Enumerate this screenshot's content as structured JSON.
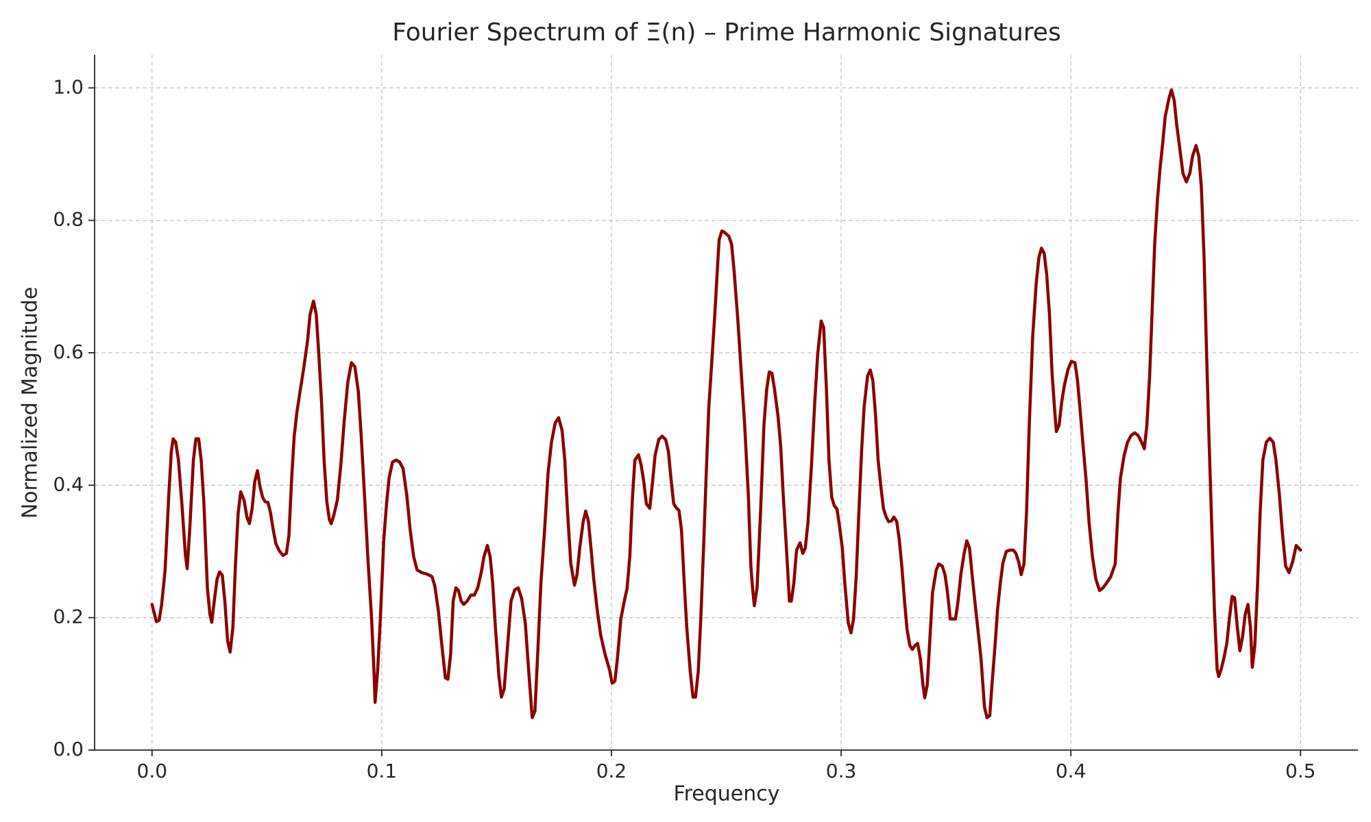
{
  "chart_data": {
    "type": "line",
    "title": "Fourier Spectrum of Ξ(n) – Prime Harmonic Signatures",
    "xlabel": "Frequency",
    "ylabel": "Normalized Magnitude",
    "color": "#8b0000",
    "grid": true,
    "xlim": [
      -0.025,
      0.525
    ],
    "ylim": [
      0,
      1.05
    ],
    "xticks": [
      {
        "value": 0,
        "label": "0.0"
      },
      0.1,
      0.2,
      0.3,
      0.4,
      0.5
    ],
    "yticks": [
      {
        "value": 0,
        "label": "0.0"
      },
      0.2,
      0.4,
      0.6,
      0.8,
      {
        "value": 1,
        "label": "1.0"
      }
    ],
    "x": [
      0.0,
      0.0019,
      0.0031,
      0.0042,
      0.0057,
      0.0073,
      0.0084,
      0.0092,
      0.0103,
      0.0115,
      0.013,
      0.0145,
      0.0153,
      0.0164,
      0.018,
      0.0191,
      0.0203,
      0.0214,
      0.0226,
      0.0241,
      0.0252,
      0.026,
      0.0271,
      0.0283,
      0.0294,
      0.0306,
      0.0317,
      0.0329,
      0.034,
      0.0352,
      0.0363,
      0.0375,
      0.0386,
      0.0401,
      0.0413,
      0.0424,
      0.0436,
      0.0447,
      0.0459,
      0.047,
      0.0482,
      0.0493,
      0.0505,
      0.0516,
      0.0528,
      0.0539,
      0.0554,
      0.057,
      0.0585,
      0.0596,
      0.0608,
      0.0619,
      0.0631,
      0.0646,
      0.0661,
      0.0677,
      0.0688,
      0.0703,
      0.0715,
      0.0726,
      0.0738,
      0.0749,
      0.0761,
      0.0772,
      0.078,
      0.0791,
      0.0807,
      0.0822,
      0.0837,
      0.0852,
      0.0868,
      0.0883,
      0.0898,
      0.091,
      0.0925,
      0.094,
      0.0956,
      0.0967,
      0.0971,
      0.0982,
      0.0994,
      0.1009,
      0.1021,
      0.1032,
      0.1047,
      0.1063,
      0.1078,
      0.1093,
      0.1109,
      0.1124,
      0.1139,
      0.1154,
      0.1174,
      0.1196,
      0.1219,
      0.1231,
      0.1246,
      0.1261,
      0.1277,
      0.1288,
      0.13,
      0.1311,
      0.1323,
      0.1334,
      0.1346,
      0.1357,
      0.1372,
      0.1388,
      0.1403,
      0.1418,
      0.1433,
      0.1445,
      0.146,
      0.1472,
      0.1483,
      0.1495,
      0.151,
      0.1521,
      0.1533,
      0.1548,
      0.1563,
      0.1579,
      0.1594,
      0.1609,
      0.1625,
      0.164,
      0.1655,
      0.1667,
      0.1678,
      0.1693,
      0.1709,
      0.1724,
      0.1739,
      0.1755,
      0.177,
      0.1785,
      0.1797,
      0.1808,
      0.1823,
      0.1839,
      0.185,
      0.1862,
      0.1877,
      0.1888,
      0.19,
      0.1911,
      0.1923,
      0.1938,
      0.1953,
      0.1972,
      0.1992,
      0.2003,
      0.2015,
      0.2026,
      0.2041,
      0.2056,
      0.2068,
      0.208,
      0.2091,
      0.2102,
      0.2118,
      0.2129,
      0.2141,
      0.2152,
      0.2167,
      0.2179,
      0.219,
      0.2206,
      0.2221,
      0.2236,
      0.2248,
      0.2259,
      0.2271,
      0.2282,
      0.2294,
      0.2305,
      0.2317,
      0.2328,
      0.2343,
      0.2355,
      0.2366,
      0.2378,
      0.2389,
      0.2401,
      0.2412,
      0.2424,
      0.2439,
      0.245,
      0.2462,
      0.2469,
      0.2481,
      0.2492,
      0.2511,
      0.2523,
      0.2534,
      0.255,
      0.2565,
      0.258,
      0.2596,
      0.2607,
      0.2615,
      0.2622,
      0.2634,
      0.2649,
      0.2664,
      0.2676,
      0.2687,
      0.2699,
      0.271,
      0.2725,
      0.2737,
      0.2748,
      0.2764,
      0.2775,
      0.2783,
      0.2794,
      0.2806,
      0.2821,
      0.2833,
      0.2844,
      0.2856,
      0.2871,
      0.2886,
      0.2898,
      0.2913,
      0.2924,
      0.2936,
      0.2947,
      0.2959,
      0.297,
      0.2982,
      0.2993,
      0.3005,
      0.3016,
      0.3031,
      0.3043,
      0.3054,
      0.3066,
      0.3077,
      0.3089,
      0.31,
      0.3115,
      0.3127,
      0.3138,
      0.315,
      0.3161,
      0.3173,
      0.3184,
      0.3196,
      0.3207,
      0.3219,
      0.323,
      0.3242,
      0.3253,
      0.3264,
      0.3276,
      0.3287,
      0.3299,
      0.331,
      0.3322,
      0.3333,
      0.3345,
      0.3356,
      0.3364,
      0.3375,
      0.3387,
      0.3398,
      0.3414,
      0.3425,
      0.344,
      0.3452,
      0.3463,
      0.3475,
      0.3486,
      0.3498,
      0.3509,
      0.3521,
      0.3536,
      0.3547,
      0.3559,
      0.357,
      0.3582,
      0.3593,
      0.3609,
      0.3624,
      0.3635,
      0.3647,
      0.3658,
      0.367,
      0.3681,
      0.3693,
      0.3704,
      0.3719,
      0.3735,
      0.375,
      0.3761,
      0.3773,
      0.3784,
      0.3796,
      0.3807,
      0.3819,
      0.3834,
      0.3849,
      0.3861,
      0.3872,
      0.3884,
      0.3895,
      0.3907,
      0.3918,
      0.393,
      0.3937,
      0.3949,
      0.396,
      0.3972,
      0.3987,
      0.4002,
      0.4018,
      0.4029,
      0.4041,
      0.4052,
      0.4067,
      0.4079,
      0.4094,
      0.4109,
      0.4125,
      0.414,
      0.4155,
      0.4174,
      0.4193,
      0.4205,
      0.4216,
      0.4232,
      0.4247,
      0.4262,
      0.4278,
      0.4293,
      0.4308,
      0.432,
      0.4331,
      0.4343,
      0.4354,
      0.4365,
      0.4377,
      0.4388,
      0.44,
      0.4411,
      0.4427,
      0.4438,
      0.445,
      0.4461,
      0.4476,
      0.4488,
      0.4503,
      0.4518,
      0.453,
      0.4545,
      0.4557,
      0.4568,
      0.458,
      0.4591,
      0.4602,
      0.4614,
      0.4625,
      0.4637,
      0.4644,
      0.4656,
      0.4667,
      0.4679,
      0.469,
      0.4702,
      0.4713,
      0.4725,
      0.4736,
      0.4748,
      0.4759,
      0.4771,
      0.4782,
      0.479,
      0.4801,
      0.4813,
      0.4824,
      0.4836,
      0.4851,
      0.4866,
      0.4881,
      0.4893,
      0.4908,
      0.492,
      0.4935,
      0.495,
      0.4966,
      0.4981,
      0.5
    ],
    "values": [
      0.22,
      0.194,
      0.196,
      0.22,
      0.272,
      0.385,
      0.451,
      0.47,
      0.465,
      0.438,
      0.372,
      0.296,
      0.274,
      0.332,
      0.438,
      0.47,
      0.47,
      0.438,
      0.372,
      0.245,
      0.205,
      0.193,
      0.225,
      0.258,
      0.269,
      0.264,
      0.225,
      0.165,
      0.148,
      0.185,
      0.278,
      0.358,
      0.39,
      0.377,
      0.352,
      0.342,
      0.365,
      0.405,
      0.422,
      0.398,
      0.381,
      0.375,
      0.374,
      0.358,
      0.332,
      0.312,
      0.301,
      0.294,
      0.297,
      0.324,
      0.411,
      0.474,
      0.511,
      0.545,
      0.578,
      0.618,
      0.658,
      0.678,
      0.658,
      0.598,
      0.525,
      0.438,
      0.375,
      0.348,
      0.342,
      0.354,
      0.378,
      0.431,
      0.498,
      0.555,
      0.585,
      0.579,
      0.542,
      0.478,
      0.385,
      0.288,
      0.198,
      0.112,
      0.072,
      0.119,
      0.198,
      0.318,
      0.372,
      0.411,
      0.435,
      0.438,
      0.435,
      0.425,
      0.385,
      0.332,
      0.292,
      0.272,
      0.268,
      0.266,
      0.262,
      0.248,
      0.212,
      0.161,
      0.109,
      0.107,
      0.145,
      0.225,
      0.245,
      0.241,
      0.225,
      0.22,
      0.225,
      0.234,
      0.234,
      0.245,
      0.268,
      0.292,
      0.309,
      0.292,
      0.252,
      0.185,
      0.112,
      0.08,
      0.092,
      0.158,
      0.225,
      0.242,
      0.245,
      0.229,
      0.192,
      0.119,
      0.049,
      0.059,
      0.138,
      0.252,
      0.332,
      0.418,
      0.465,
      0.494,
      0.502,
      0.483,
      0.438,
      0.365,
      0.282,
      0.249,
      0.265,
      0.305,
      0.345,
      0.361,
      0.345,
      0.305,
      0.258,
      0.212,
      0.174,
      0.145,
      0.121,
      0.101,
      0.104,
      0.138,
      0.198,
      0.225,
      0.244,
      0.292,
      0.378,
      0.438,
      0.446,
      0.431,
      0.405,
      0.372,
      0.365,
      0.405,
      0.445,
      0.469,
      0.474,
      0.469,
      0.451,
      0.411,
      0.372,
      0.366,
      0.362,
      0.332,
      0.252,
      0.185,
      0.119,
      0.08,
      0.08,
      0.119,
      0.198,
      0.305,
      0.411,
      0.518,
      0.598,
      0.658,
      0.731,
      0.771,
      0.784,
      0.782,
      0.776,
      0.764,
      0.724,
      0.651,
      0.571,
      0.491,
      0.385,
      0.278,
      0.242,
      0.218,
      0.245,
      0.358,
      0.491,
      0.545,
      0.571,
      0.569,
      0.545,
      0.505,
      0.458,
      0.385,
      0.292,
      0.225,
      0.225,
      0.252,
      0.302,
      0.313,
      0.297,
      0.305,
      0.345,
      0.431,
      0.531,
      0.598,
      0.648,
      0.638,
      0.545,
      0.438,
      0.382,
      0.369,
      0.364,
      0.338,
      0.305,
      0.252,
      0.192,
      0.177,
      0.198,
      0.265,
      0.358,
      0.451,
      0.518,
      0.565,
      0.574,
      0.558,
      0.505,
      0.438,
      0.398,
      0.365,
      0.352,
      0.345,
      0.346,
      0.352,
      0.345,
      0.318,
      0.278,
      0.225,
      0.182,
      0.158,
      0.152,
      0.158,
      0.161,
      0.138,
      0.099,
      0.079,
      0.099,
      0.172,
      0.238,
      0.272,
      0.281,
      0.278,
      0.265,
      0.238,
      0.198,
      0.198,
      0.198,
      0.225,
      0.265,
      0.298,
      0.316,
      0.305,
      0.265,
      0.225,
      0.19,
      0.138,
      0.065,
      0.049,
      0.052,
      0.105,
      0.158,
      0.212,
      0.252,
      0.282,
      0.3,
      0.302,
      0.302,
      0.297,
      0.284,
      0.265,
      0.281,
      0.358,
      0.491,
      0.625,
      0.704,
      0.744,
      0.758,
      0.75,
      0.718,
      0.658,
      0.571,
      0.511,
      0.481,
      0.491,
      0.525,
      0.551,
      0.574,
      0.587,
      0.585,
      0.558,
      0.511,
      0.465,
      0.405,
      0.345,
      0.292,
      0.258,
      0.241,
      0.245,
      0.252,
      0.262,
      0.281,
      0.358,
      0.411,
      0.445,
      0.465,
      0.475,
      0.479,
      0.475,
      0.465,
      0.455,
      0.491,
      0.565,
      0.664,
      0.764,
      0.831,
      0.877,
      0.917,
      0.957,
      0.984,
      0.997,
      0.981,
      0.944,
      0.904,
      0.871,
      0.858,
      0.871,
      0.897,
      0.913,
      0.897,
      0.851,
      0.744,
      0.598,
      0.465,
      0.332,
      0.212,
      0.121,
      0.111,
      0.124,
      0.14,
      0.161,
      0.198,
      0.232,
      0.23,
      0.185,
      0.15,
      0.172,
      0.205,
      0.22,
      0.185,
      0.125,
      0.158,
      0.252,
      0.358,
      0.438,
      0.465,
      0.471,
      0.465,
      0.438,
      0.385,
      0.332,
      0.278,
      0.268,
      0.285,
      0.309,
      0.302
    ]
  }
}
